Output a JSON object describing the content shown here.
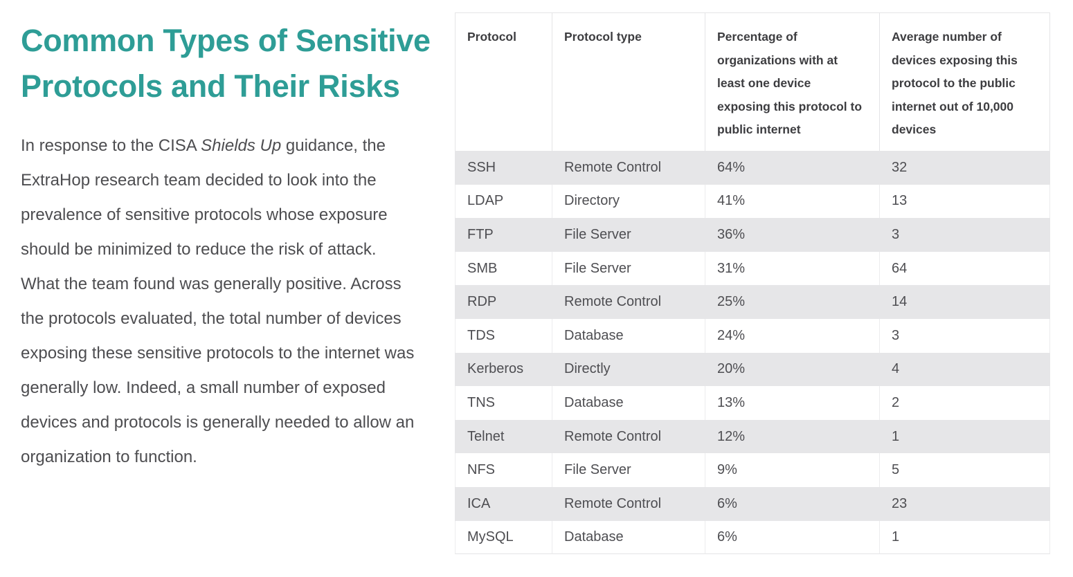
{
  "page": {
    "accent_color": "#2e9d96",
    "body_text_color": "#4d4d50",
    "zebra_row_color": "#e6e6e8",
    "table_border_color": "#e4e4e6"
  },
  "article": {
    "heading": "Common Types of Sensitive Protocols and Their Risks",
    "paragraph": {
      "before_italic": "In response to the CISA ",
      "italic": "Shields Up",
      "after_italic": " guidance, the ExtraHop research team decided to look into the prevalence of sensitive protocols whose exposure should be minimized to reduce the risk of attack. What the team found was generally positive. Across the protocols evaluated, the total number of devices exposing these sensitive protocols to the internet was generally low. Indeed, a small number of exposed devices and protocols is generally needed to allow an organization to function."
    }
  },
  "table": {
    "headers": [
      "Protocol",
      "Protocol type",
      "Percentage of organizations with at least one device exposing this protocol to public internet",
      "Average number of devices exposing this protocol to the public internet out of 10,000 devices"
    ],
    "rows": [
      [
        "SSH",
        "Remote Control",
        "64%",
        "32"
      ],
      [
        "LDAP",
        "Directory",
        "41%",
        "13"
      ],
      [
        "FTP",
        "File Server",
        "36%",
        "3"
      ],
      [
        "SMB",
        "File Server",
        "31%",
        "64"
      ],
      [
        "RDP",
        "Remote Control",
        "25%",
        "14"
      ],
      [
        "TDS",
        "Database",
        "24%",
        "3"
      ],
      [
        "Kerberos",
        "Directly",
        "20%",
        "4"
      ],
      [
        "TNS",
        "Database",
        "13%",
        "2"
      ],
      [
        "Telnet",
        "Remote Control",
        "12%",
        "1"
      ],
      [
        "NFS",
        "File Server",
        "9%",
        "5"
      ],
      [
        "ICA",
        "Remote Control",
        "6%",
        "23"
      ],
      [
        "MySQL",
        "Database",
        "6%",
        "1"
      ]
    ]
  }
}
